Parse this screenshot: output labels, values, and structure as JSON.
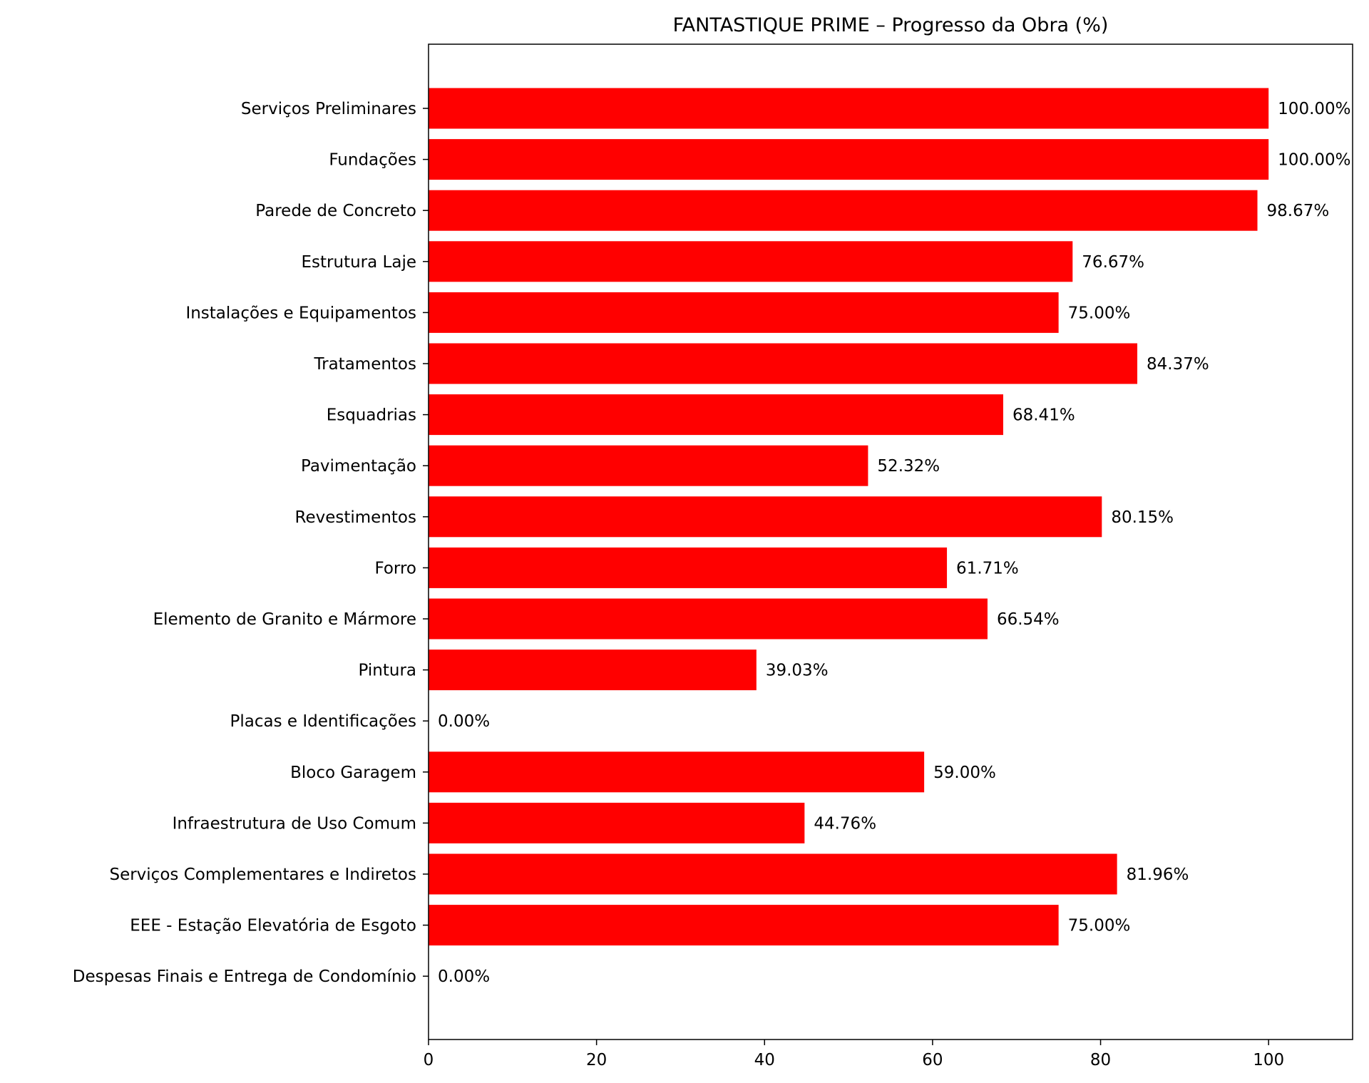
{
  "chart_data": {
    "type": "bar",
    "orientation": "horizontal",
    "title": "FANTASTIQUE PRIME – Progresso da Obra (%)",
    "xlabel": "",
    "ylabel": "",
    "xlim": [
      0,
      110
    ],
    "xticks": [
      0,
      20,
      40,
      60,
      80,
      100
    ],
    "grid": false,
    "bar_color": "#ff0000",
    "categories": [
      "Serviços Preliminares",
      "Fundações",
      "Parede de Concreto",
      "Estrutura Laje",
      "Instalações e Equipamentos",
      "Tratamentos",
      "Esquadrias",
      "Pavimentação",
      "Revestimentos",
      "Forro",
      "Elemento de Granito e Mármore",
      "Pintura",
      "Placas e Identificações",
      "Bloco Garagem",
      "Infraestrutura de Uso Comum",
      "Serviços Complementares e Indiretos",
      "EEE - Estação Elevatória de Esgoto",
      "Despesas Finais e Entrega de Condomínio"
    ],
    "values": [
      100.0,
      100.0,
      98.67,
      76.67,
      75.0,
      84.37,
      68.41,
      52.32,
      80.15,
      61.71,
      66.54,
      39.03,
      0.0,
      59.0,
      44.76,
      81.96,
      75.0,
      0.0
    ],
    "value_labels": [
      "100.00%",
      "100.00%",
      "98.67%",
      "76.67%",
      "75.00%",
      "84.37%",
      "68.41%",
      "52.32%",
      "80.15%",
      "61.71%",
      "66.54%",
      "39.03%",
      "0.00%",
      "59.00%",
      "44.76%",
      "81.96%",
      "75.00%",
      "0.00%"
    ]
  }
}
